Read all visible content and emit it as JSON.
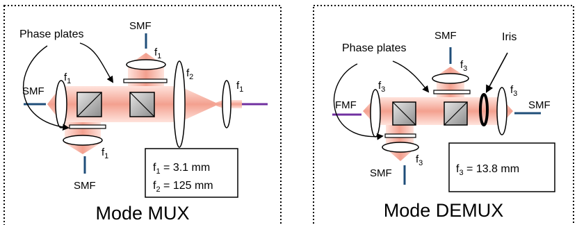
{
  "mux": {
    "title": "Mode MUX",
    "phase_plates_label": "Phase plates",
    "smf_top": "SMF",
    "smf_left": "SMF",
    "smf_bottom": "SMF",
    "focal_top": "f",
    "focal_top_sub": "1",
    "focal_left": "f",
    "focal_left_sub": "1",
    "focal_bottom": "f",
    "focal_bottom_sub": "1",
    "focal_big": "f",
    "focal_big_sub": "2",
    "focal_right": "f",
    "focal_right_sub": "1",
    "spec_line1_var": "f",
    "spec_line1_sub": "1",
    "spec_line1_val": " = 3.1 mm",
    "spec_line2_var": "f",
    "spec_line2_sub": "2",
    "spec_line2_val": " = 125 mm"
  },
  "demux": {
    "title": "Mode DEMUX",
    "phase_plates_label": "Phase plates",
    "iris_label": "Iris",
    "smf_top": "SMF",
    "smf_right": "SMF",
    "smf_bottom": "SMF",
    "fmf_label": "FMF",
    "focal_top": "f",
    "focal_top_sub": "3",
    "focal_left": "f",
    "focal_left_sub": "3",
    "focal_right": "f",
    "focal_right_sub": "3",
    "focal_bottom": "f",
    "focal_bottom_sub": "3",
    "spec_line1_var": "f",
    "spec_line1_sub": "3",
    "spec_line1_val": " = 13.8 mm"
  },
  "colors": {
    "beam_light": "#ffe6e0",
    "beam_dark": "#f4a290",
    "smf_fiber": "#1f4e79",
    "fmf_fiber": "#7030a0",
    "cube_fill": "#bfbfbf"
  }
}
